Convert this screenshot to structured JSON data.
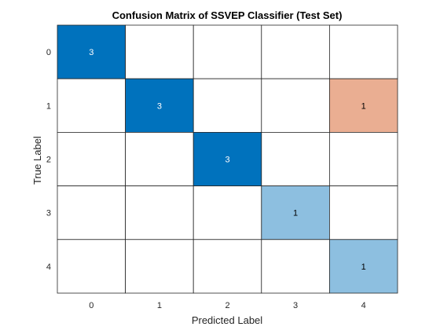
{
  "chart_data": {
    "type": "heatmap",
    "title": "Confusion Matrix of SSVEP Classifier (Test Set)",
    "xlabel": "Predicted Label",
    "ylabel": "True Label",
    "x_categories": [
      "0",
      "1",
      "2",
      "3",
      "4"
    ],
    "y_categories": [
      "0",
      "1",
      "2",
      "3",
      "4"
    ],
    "matrix": [
      [
        3,
        0,
        0,
        0,
        0
      ],
      [
        0,
        3,
        0,
        0,
        1
      ],
      [
        0,
        0,
        3,
        0,
        0
      ],
      [
        0,
        0,
        0,
        1,
        0
      ],
      [
        0,
        0,
        0,
        0,
        1
      ]
    ],
    "colors": {
      "diagonal_high": "#0072bd",
      "diagonal_low": "#8dbfe0",
      "off_diagonal": "#eaae92",
      "empty": "#ffffff",
      "grid": "#262626",
      "label_light": "#ffffff",
      "label_dark": "#000000"
    }
  }
}
